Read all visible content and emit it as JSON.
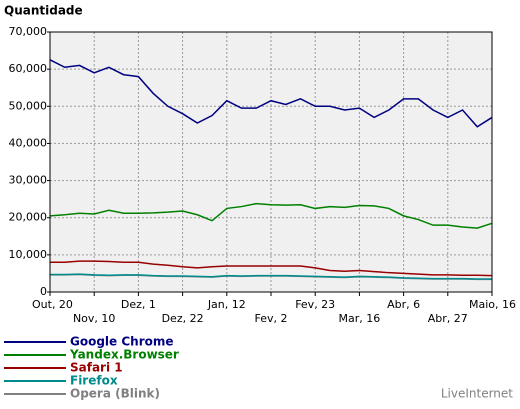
{
  "chart_data": {
    "type": "line",
    "title": "Quantidade",
    "categories": [
      "Out, 20",
      null,
      null,
      "Nov, 10",
      null,
      null,
      "Dez, 1",
      null,
      null,
      "Dez, 22",
      null,
      null,
      "Jan, 12",
      null,
      null,
      "Fev, 2",
      null,
      null,
      "Fev, 23",
      null,
      null,
      "Mar, 16",
      null,
      null,
      "Abr, 6",
      null,
      null,
      "Abr, 27",
      null,
      null,
      "Maio, 16"
    ],
    "ylim": [
      0,
      70000
    ],
    "yticks": [
      0,
      {
        "value": 10000,
        "label": "10,000"
      },
      {
        "value": 20000,
        "label": "20,000"
      },
      {
        "value": 30000,
        "label": "30,000"
      },
      {
        "value": 40000,
        "label": "40,000"
      },
      {
        "value": 50000,
        "label": "50,000"
      },
      {
        "value": 60000,
        "label": "60,000"
      },
      {
        "value": 70000,
        "label": "70,000"
      }
    ],
    "grid": true,
    "series": [
      {
        "name": "Google Chrome",
        "color": "#000080",
        "values": [
          62500,
          60500,
          61000,
          59000,
          60500,
          58500,
          58000,
          53500,
          50000,
          48000,
          45500,
          47500,
          51500,
          49500,
          49500,
          51500,
          50500,
          52000,
          50000,
          50000,
          49000,
          49500,
          47000,
          49000,
          52000,
          52000,
          49000,
          47000,
          49000,
          44500,
          47000
        ]
      },
      {
        "name": "Yandex.Browser",
        "color": "#008000",
        "values": [
          20500,
          20800,
          21200,
          21000,
          22000,
          21200,
          21200,
          21300,
          21500,
          21800,
          20800,
          19200,
          22500,
          23000,
          23800,
          23500,
          23400,
          23500,
          22500,
          23000,
          22800,
          23300,
          23200,
          22500,
          20500,
          19500,
          18000,
          18000,
          17500,
          17200,
          18500
        ]
      },
      {
        "name": "Safari 1",
        "color": "#990000",
        "values": [
          8000,
          8000,
          8300,
          8300,
          8200,
          8000,
          8000,
          7500,
          7200,
          6800,
          6500,
          6800,
          7000,
          7000,
          7000,
          7000,
          7000,
          7000,
          6500,
          5800,
          5600,
          5800,
          5500,
          5200,
          5000,
          4800,
          4600,
          4600,
          4500,
          4500,
          4400
        ]
      },
      {
        "name": "Firefox",
        "color": "#008b8b",
        "values": [
          4700,
          4700,
          4800,
          4600,
          4500,
          4600,
          4600,
          4400,
          4300,
          4300,
          4200,
          4100,
          4400,
          4300,
          4400,
          4400,
          4400,
          4300,
          4200,
          4100,
          4000,
          4200,
          4100,
          4000,
          3800,
          3700,
          3600,
          3600,
          3600,
          3500,
          3500
        ]
      },
      {
        "name": "Opera (Blink)",
        "color": "#808080",
        "values": [
          4600,
          4600,
          4700,
          4500,
          4400,
          4500,
          4500,
          4300,
          4200,
          4200,
          4100,
          4000,
          4300,
          4200,
          4300,
          4300,
          4300,
          4200,
          4100,
          4000,
          3900,
          4100,
          4000,
          3900,
          3700,
          3600,
          3500,
          3500,
          3500,
          3400,
          3400
        ]
      }
    ],
    "source": "LiveInternet"
  }
}
